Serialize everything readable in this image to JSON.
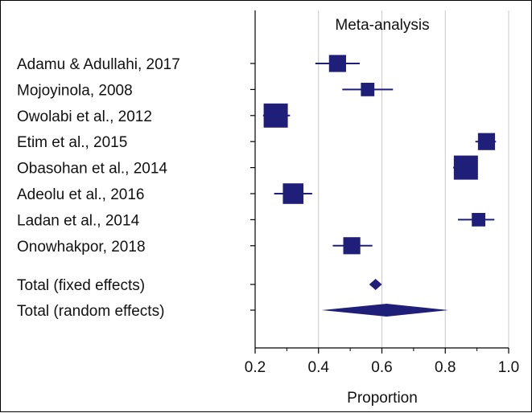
{
  "chart_data": {
    "type": "forest",
    "title": "Meta-analysis",
    "xlabel": "Proportion",
    "xlim": [
      0.2,
      1.0
    ],
    "xticks": [
      "0.2",
      "0.4",
      "0.6",
      "0.8",
      "1.0"
    ],
    "grid": "vertical",
    "colors": {
      "marker": "#1f1f7a",
      "grid": "#c8c8c8",
      "axis": "#000000"
    },
    "studies": [
      {
        "label": "Adamu & Adullahi, 2017",
        "estimate": 0.46,
        "ci": [
          0.39,
          0.53
        ],
        "weight": 3
      },
      {
        "label": "Mojoyinola, 2008",
        "estimate": 0.555,
        "ci": [
          0.475,
          0.635
        ],
        "weight": 2
      },
      {
        "label": "Owolabi et al., 2012",
        "estimate": 0.265,
        "ci": [
          0.225,
          0.31
        ],
        "weight": 5
      },
      {
        "label": "Etim et al., 2015",
        "estimate": 0.93,
        "ci": [
          0.895,
          0.96
        ],
        "weight": 3
      },
      {
        "label": "Obasohan et al., 2014",
        "estimate": 0.865,
        "ci": [
          0.825,
          0.9
        ],
        "weight": 5
      },
      {
        "label": "Adeolu et al., 2016",
        "estimate": 0.32,
        "ci": [
          0.26,
          0.38
        ],
        "weight": 4
      },
      {
        "label": "Ladan et al., 2014",
        "estimate": 0.905,
        "ci": [
          0.84,
          0.955
        ],
        "weight": 2
      },
      {
        "label": "Onowhakpor, 2018",
        "estimate": 0.505,
        "ci": [
          0.445,
          0.57
        ],
        "weight": 3
      }
    ],
    "totals": [
      {
        "label": "Total (fixed effects)",
        "estimate": 0.58,
        "ci": [
          0.56,
          0.6
        ]
      },
      {
        "label": "Total (random effects)",
        "estimate": 0.615,
        "ci": [
          0.41,
          0.81
        ]
      }
    ]
  }
}
